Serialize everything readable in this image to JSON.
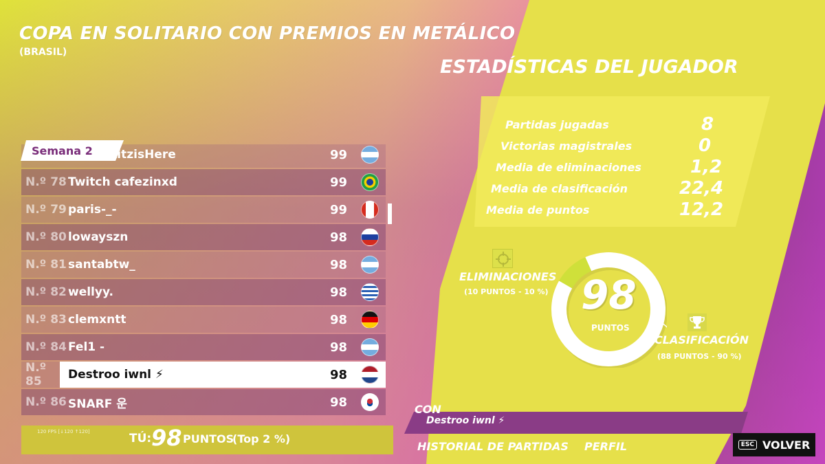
{
  "header": {
    "title": "COPA EN SOLITARIO CON PREMIOS EN METÁLICO",
    "subtitle": "(BRASIL)"
  },
  "stats": {
    "title": "ESTADÍSTICAS DEL JUGADOR",
    "items": [
      {
        "label": "Partidas jugadas",
        "value": "8"
      },
      {
        "label": "Victorias magistrales",
        "value": "0"
      },
      {
        "label": "Media de eliminaciones",
        "value": "1,2"
      },
      {
        "label": "Media de clasificación",
        "value": "22,4"
      },
      {
        "label": "Media de puntos",
        "value": "12,2"
      }
    ]
  },
  "leaderboard": {
    "week_tab": "Semana 2",
    "partial_top_name": "kitzisHere",
    "partial_top_points": "99",
    "rows": [
      {
        "rank": "N.º 78",
        "name": "Twitch cafezinxd",
        "points": "99",
        "flag": "brazil"
      },
      {
        "rank": "N.º 79",
        "name": "paris-_-",
        "points": "99",
        "flag": "canada"
      },
      {
        "rank": "N.º 80",
        "name": "lowayszn",
        "points": "98",
        "flag": "russia"
      },
      {
        "rank": "N.º 81",
        "name": "santabtw_",
        "points": "98",
        "flag": "argentina"
      },
      {
        "rank": "N.º 82",
        "name": "wellyy.",
        "points": "98",
        "flag": "uruguay"
      },
      {
        "rank": "N.º 83",
        "name": "clemxntt",
        "points": "98",
        "flag": "germany"
      },
      {
        "rank": "N.º 84",
        "name": "Fel1 -",
        "points": "98",
        "flag": "argentina"
      },
      {
        "rank": "N.º 85",
        "name": "Destroo iwnl ⚡",
        "points": "98",
        "flag": "netherlands"
      },
      {
        "rank": "N.º 86",
        "name": "SNARF 운",
        "points": "98",
        "flag": "south-korea"
      }
    ],
    "highlighted_index": 7
  },
  "you": {
    "fps": "120 FPS [↓120 ↑120]",
    "label": "TÚ:",
    "points": "98",
    "unit": "PUNTOS",
    "top": "(Top 2 %)"
  },
  "donut": {
    "total": "98",
    "unit": "PUNTOS",
    "elim_fraction": 0.1,
    "elim_label": "ELIMINACIONES",
    "elim_sub": "(10 PUNTOS - 10 %)",
    "clas_label": "CLASIFICACIÓN",
    "clas_sub": "(88 PUNTOS - 90 %)",
    "colors": {
      "elim": "#cfe03a",
      "clas": "#ffffff"
    }
  },
  "con": {
    "label": "CON",
    "name": "Destroo iwnl ⚡"
  },
  "nav": {
    "history": "HISTORIAL DE PARTIDAS",
    "profile": "PERFIL",
    "esc_key": "ESC",
    "back": "VOLVER"
  }
}
